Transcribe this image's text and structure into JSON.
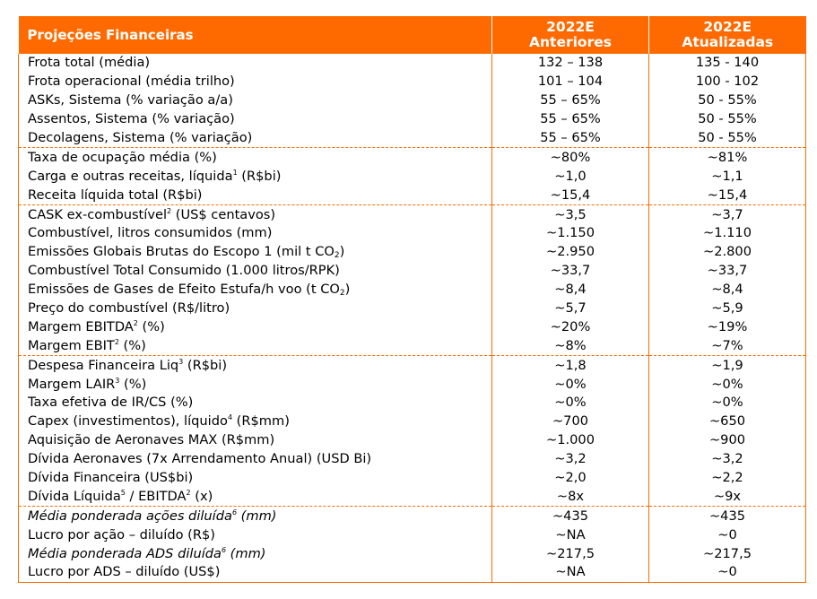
{
  "header": {
    "title": "Projeções Financeiras",
    "col1": [
      "2022E",
      "Anteriores"
    ],
    "col2": [
      "2022E",
      "Atualizadas"
    ]
  },
  "rows": [
    {
      "label": "Frota total (média)",
      "a": "132 – 138",
      "b": "135 - 140"
    },
    {
      "label": "Frota operacional (média trilho)",
      "a": "101 – 104",
      "b": "100 - 102"
    },
    {
      "label": "ASKs, Sistema (% variação a/a)",
      "a": "55 – 65%",
      "b": "50 - 55%"
    },
    {
      "label": "Assentos, Sistema (% variação)",
      "a": "55 – 65%",
      "b": "50 - 55%"
    },
    {
      "label": "Decolagens, Sistema (% variação)",
      "a": "55 – 65%",
      "b": "50 - 55%"
    },
    {
      "label": "Taxa de ocupação média (%)",
      "a": "~80%",
      "b": "~81%"
    },
    {
      "label": "Carga e outras receitas, líquida",
      "sup": "1",
      "label2": " (R$bi)",
      "a": "~1,0",
      "b": "~1,1"
    },
    {
      "label": "Receita líquida total (R$bi)",
      "a": "~15,4",
      "b": "~15,4"
    },
    {
      "label": "CASK ex-combustível",
      "sup": "2",
      "label2": " (US$ centavos)",
      "a": "~3,5",
      "b": "~3,7"
    },
    {
      "label": "Combustível, litros consumidos (mm)",
      "a": "~1.150",
      "b": "~1.110"
    },
    {
      "label": "Emissões Globais Brutas do Escopo 1 (mil t CO",
      "sub": "2",
      "label2": ")",
      "a": "~2.950",
      "b": "~2.800"
    },
    {
      "label": "Combustível Total Consumido (1.000 litros/RPK)",
      "a": "~33,7",
      "b": "~33,7"
    },
    {
      "label": "Emissões de Gases de Efeito Estufa/h voo (t CO",
      "sub": "2",
      "label2": ")",
      "a": "~8,4",
      "b": "~8,4"
    },
    {
      "label": "Preço do combustível (R$/litro)",
      "a": "~5,7",
      "b": "~5,9"
    },
    {
      "label": "Margem EBITDA",
      "sup": "2",
      "label2": " (%)",
      "a": "~20%",
      "b": "~19%"
    },
    {
      "label": "Margem EBIT",
      "sup": "2",
      "label2": " (%)",
      "a": "~8%",
      "b": "~7%"
    },
    {
      "label": "Despesa Financeira Liq",
      "sup": "3",
      "label2": " (R$bi)",
      "a": "~1,8",
      "b": "~1,9"
    },
    {
      "label": "Margem LAIR",
      "sup": "3",
      "label2": " (%)",
      "a": "~0%",
      "b": "~0%"
    },
    {
      "label": "Taxa efetiva de IR/CS (%)",
      "a": "~0%",
      "b": "~0%"
    },
    {
      "label": "Capex (investimentos), líquido",
      "sup": "4",
      "label2": " (R$mm)",
      "a": "~700",
      "b": "~650"
    },
    {
      "label": "Aquisição de Aeronaves MAX (R$mm)",
      "a": "~1.000",
      "b": "~900"
    },
    {
      "label": "Dívida Aeronaves (7x Arrendamento Anual) (USD Bi)",
      "a": "~3,2",
      "b": "~3,2"
    },
    {
      "label": "Dívida Financeira (US$bi)",
      "a": "~2,0",
      "b": "~2,2"
    },
    {
      "label": "Dívida Líquida",
      "sup": "5",
      "label2": " / EBITDA",
      "sup2": "2",
      "label3": " (x)",
      "a": "~8x",
      "b": "~9x"
    },
    {
      "label": "Média ponderada ações diluída",
      "sup": "6",
      "label2": " (mm)",
      "italic": true,
      "a": "~435",
      "b": "~435"
    },
    {
      "label": "Lucro por ação – diluído (R$)",
      "a": "~NA",
      "b": "~0"
    },
    {
      "label": "Média ponderada ADS diluída",
      "sup": "6",
      "label2": " (mm)",
      "italic": true,
      "a": "~217,5",
      "b": "~217,5"
    },
    {
      "label": "Lucro por ADS – diluído (US$)",
      "a": "~NA",
      "b": "~0"
    }
  ],
  "group_starts": [
    0,
    5,
    8,
    16,
    24
  ]
}
